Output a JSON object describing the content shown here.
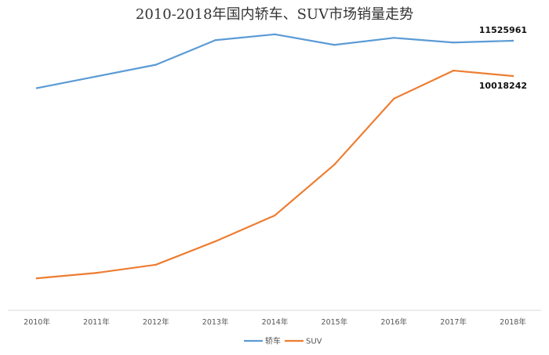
{
  "chart_data": {
    "type": "line",
    "title": "2010-2018年国内轿车、SUV市场销量走势",
    "xlabel": "",
    "ylabel": "",
    "categories": [
      "2010年",
      "2011年",
      "2012年",
      "2013年",
      "2014年",
      "2015年",
      "2016年",
      "2017年",
      "2018年"
    ],
    "ylim": [
      0,
      13000000
    ],
    "grid": false,
    "legend_position": "bottom",
    "series": [
      {
        "name": "轿车",
        "color": "#5B9BD5",
        "values": [
          9500000,
          10000000,
          10500000,
          11550000,
          11800000,
          11350000,
          11650000,
          11450000,
          11525961
        ],
        "end_label": "11525961"
      },
      {
        "name": "SUV",
        "color": "#ED7D31",
        "values": [
          1370000,
          1600000,
          1950000,
          2950000,
          4060000,
          6230000,
          9050000,
          10250000,
          10018242
        ],
        "end_label": "10018242"
      }
    ]
  }
}
